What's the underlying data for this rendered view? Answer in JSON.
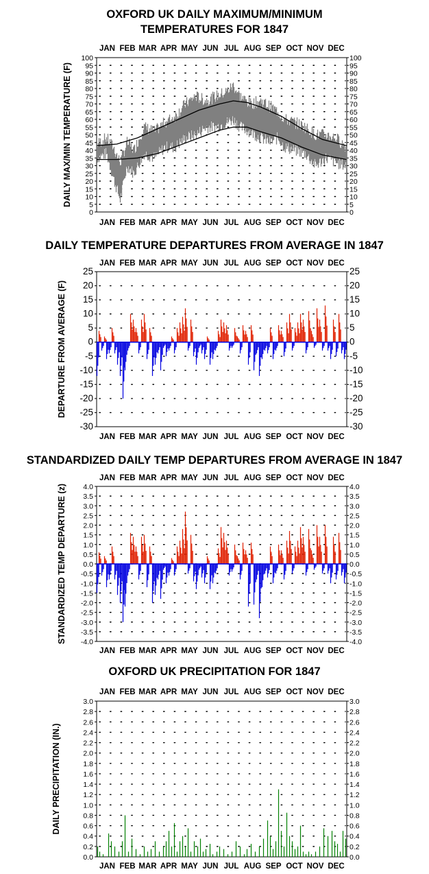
{
  "months": [
    "JAN",
    "FEB",
    "MAR",
    "APR",
    "MAY",
    "JUN",
    "JUL",
    "AUG",
    "SEP",
    "OCT",
    "NOV",
    "DEC"
  ],
  "colors": {
    "observed": "#808080",
    "normal": "#000000",
    "warm": "#e02000",
    "cold": "#0000e0",
    "precip": "#008000",
    "grid": "#000000"
  },
  "chart_data": [
    {
      "type": "line",
      "title": [
        "OXFORD UK DAILY MAXIMUM/MINIMUM",
        "TEMPERATURES FOR 1847"
      ],
      "ylabel": "DAILY MAX/MIN TEMPERATURE (F)",
      "ylim": [
        0,
        100
      ],
      "yticks": [
        0,
        5,
        10,
        15,
        20,
        25,
        30,
        35,
        40,
        45,
        50,
        55,
        60,
        65,
        70,
        75,
        80,
        85,
        90,
        95,
        100
      ],
      "grid": true,
      "series": [
        {
          "key": "observed_range",
          "note_points": [
            [
              1,
              35,
              44
            ],
            [
              15,
              38,
              48
            ],
            [
              25,
              22,
              42
            ],
            [
              35,
              8,
              32
            ],
            [
              45,
              30,
              45
            ],
            [
              55,
              25,
              40
            ],
            [
              70,
              38,
              55
            ],
            [
              85,
              35,
              52
            ],
            [
              100,
              42,
              58
            ],
            [
              115,
              42,
              62
            ],
            [
              130,
              48,
              70
            ],
            [
              145,
              50,
              75
            ],
            [
              160,
              55,
              72
            ],
            [
              175,
              55,
              75
            ],
            [
              190,
              58,
              78
            ],
            [
              200,
              60,
              82
            ],
            [
              210,
              55,
              75
            ],
            [
              225,
              52,
              70
            ],
            [
              240,
              48,
              72
            ],
            [
              255,
              45,
              68
            ],
            [
              265,
              48,
              65
            ],
            [
              275,
              42,
              60
            ],
            [
              290,
              40,
              58
            ],
            [
              305,
              38,
              55
            ],
            [
              320,
              30,
              50
            ],
            [
              335,
              35,
              50
            ],
            [
              350,
              32,
              48
            ],
            [
              365,
              30,
              42
            ]
          ]
        },
        {
          "key": "normal_max",
          "points": [
            [
              1,
              43
            ],
            [
              30,
              44
            ],
            [
              60,
              48
            ],
            [
              90,
              54
            ],
            [
              120,
              60
            ],
            [
              150,
              66
            ],
            [
              180,
              70
            ],
            [
              200,
              72
            ],
            [
              220,
              71
            ],
            [
              240,
              68
            ],
            [
              270,
              62
            ],
            [
              300,
              54
            ],
            [
              330,
              47
            ],
            [
              365,
              43
            ]
          ]
        },
        {
          "key": "normal_min",
          "points": [
            [
              1,
              34
            ],
            [
              30,
              34
            ],
            [
              60,
              35
            ],
            [
              90,
              38
            ],
            [
              120,
              43
            ],
            [
              150,
              48
            ],
            [
              180,
              53
            ],
            [
              200,
              55
            ],
            [
              220,
              55
            ],
            [
              240,
              52
            ],
            [
              270,
              48
            ],
            [
              300,
              42
            ],
            [
              330,
              37
            ],
            [
              365,
              34
            ]
          ]
        }
      ]
    },
    {
      "type": "bar",
      "title": "DAILY TEMPERATURE DEPARTURES FROM AVERAGE IN 1847",
      "ylabel": "DEPARTURE FROM AVERAGE (F)",
      "ylim": [
        -30,
        25
      ],
      "yticks": [
        25,
        20,
        15,
        10,
        5,
        0,
        -5,
        -10,
        -15,
        -20,
        -25,
        -30
      ],
      "grid": true,
      "x": [
        1,
        4,
        8,
        12,
        15,
        19,
        23,
        27,
        31,
        35,
        39,
        42,
        46,
        50,
        54,
        58,
        62,
        66,
        70,
        74,
        78,
        82,
        86,
        90,
        94,
        98,
        102,
        106,
        110,
        114,
        118,
        122,
        126,
        130,
        134,
        138,
        142,
        146,
        150,
        154,
        158,
        162,
        166,
        170,
        174,
        178,
        182,
        186,
        190,
        194,
        198,
        202,
        206,
        210,
        214,
        218,
        222,
        226,
        230,
        234,
        238,
        242,
        246,
        250,
        254,
        258,
        262,
        266,
        270,
        274,
        278,
        282,
        286,
        290,
        294,
        298,
        302,
        306,
        310,
        314,
        318,
        322,
        326,
        330,
        334,
        338,
        342,
        346,
        350,
        354,
        358,
        362
      ],
      "values": [
        -12,
        4,
        -3,
        2,
        -6,
        -4,
        5,
        -4,
        -8,
        -12,
        -20,
        -10,
        -3,
        10,
        8,
        5,
        -4,
        8,
        10,
        -6,
        5,
        -12,
        -8,
        -4,
        -10,
        -2,
        -5,
        -3,
        2,
        -4,
        5,
        7,
        9,
        12,
        -3,
        8,
        -5,
        -8,
        -2,
        -4,
        -6,
        2,
        -8,
        -6,
        -3,
        4,
        8,
        7,
        6,
        -3,
        -2,
        5,
        2,
        -4,
        6,
        4,
        -8,
        6,
        -10,
        -4,
        -12,
        -6,
        -3,
        -4,
        5,
        -6,
        -3,
        6,
        4,
        -5,
        7,
        10,
        -3,
        5,
        7,
        10,
        8,
        -4,
        11,
        4,
        -2,
        12,
        8,
        -3,
        13,
        -3,
        -6,
        8,
        -5,
        10,
        -4,
        -6
      ]
    },
    {
      "type": "bar",
      "title": "STANDARDIZED DAILY TEMP DEPARTURES FROM AVERAGE IN 1847",
      "ylabel": "STANDARDIZED TEMP DEPARTURE (z)",
      "ylim": [
        -4,
        4
      ],
      "yticks": [
        "4.0",
        "3.5",
        "3.0",
        "2.5",
        "2.0",
        "1.5",
        "1.0",
        "0.5",
        "0.0",
        "-0.5",
        "-1.0",
        "-1.5",
        "-2.0",
        "-2.5",
        "-3.0",
        "-3.5",
        "-4.0"
      ],
      "grid": true,
      "x": [
        1,
        4,
        8,
        12,
        15,
        19,
        23,
        27,
        31,
        35,
        39,
        42,
        46,
        50,
        54,
        58,
        62,
        66,
        70,
        74,
        78,
        82,
        86,
        90,
        94,
        98,
        102,
        106,
        110,
        114,
        118,
        122,
        126,
        130,
        134,
        138,
        142,
        146,
        150,
        154,
        158,
        162,
        166,
        170,
        174,
        178,
        182,
        186,
        190,
        194,
        198,
        202,
        206,
        210,
        214,
        218,
        222,
        226,
        230,
        234,
        238,
        242,
        246,
        250,
        254,
        258,
        262,
        266,
        270,
        274,
        278,
        282,
        286,
        290,
        294,
        298,
        302,
        306,
        310,
        314,
        318,
        322,
        326,
        330,
        334,
        338,
        342,
        346,
        350,
        354,
        358,
        362
      ],
      "values": [
        -1.5,
        0.6,
        -0.6,
        0.4,
        -1.2,
        -0.8,
        0.9,
        -0.8,
        -1.6,
        -2.0,
        -3.0,
        -2.2,
        -0.6,
        1.6,
        1.4,
        0.9,
        -0.8,
        1.4,
        1.5,
        -1.2,
        0.9,
        -2.0,
        -1.6,
        -0.8,
        -1.8,
        -0.3,
        -1.0,
        -0.6,
        0.3,
        -0.6,
        0.9,
        1.2,
        1.8,
        2.7,
        -0.5,
        1.5,
        -0.9,
        -1.3,
        -0.3,
        -0.7,
        -1.0,
        0.4,
        -1.3,
        -1.0,
        -0.5,
        0.8,
        1.9,
        1.6,
        1.2,
        -0.6,
        -0.4,
        1.0,
        0.4,
        -0.8,
        1.1,
        0.7,
        -2.2,
        1.1,
        -2.1,
        -0.8,
        -2.8,
        -1.2,
        -0.5,
        -0.7,
        0.9,
        -1.0,
        -0.5,
        1.0,
        0.7,
        -0.8,
        1.2,
        1.7,
        -0.5,
        0.9,
        1.2,
        1.9,
        1.4,
        -0.6,
        1.8,
        0.7,
        -0.3,
        2.0,
        1.4,
        -0.5,
        2.0,
        -0.5,
        -1.0,
        1.4,
        -0.8,
        1.6,
        -0.6,
        -1.0
      ]
    },
    {
      "type": "bar",
      "title": "OXFORD UK PRECIPITATION FOR 1847",
      "ylabel": "DAILY PRECIPITATION (IN.)",
      "ylim": [
        0,
        3
      ],
      "yticks": [
        "3.0",
        "2.8",
        "2.6",
        "2.4",
        "2.2",
        "2.0",
        "1.8",
        "1.6",
        "1.4",
        "1.2",
        "1.0",
        "0.8",
        "0.6",
        "0.4",
        "0.2",
        "0.0"
      ],
      "grid": true,
      "x": [
        2,
        5,
        10,
        18,
        22,
        27,
        33,
        38,
        42,
        47,
        52,
        58,
        64,
        70,
        75,
        80,
        86,
        92,
        98,
        102,
        106,
        110,
        114,
        118,
        122,
        126,
        130,
        134,
        138,
        143,
        148,
        152,
        156,
        160,
        166,
        170,
        176,
        180,
        186,
        192,
        198,
        204,
        210,
        216,
        220,
        226,
        232,
        238,
        244,
        250,
        254,
        258,
        262,
        266,
        270,
        274,
        278,
        282,
        286,
        290,
        294,
        298,
        302,
        306,
        310,
        314,
        320,
        326,
        332,
        338,
        344,
        348,
        352,
        356,
        360,
        364
      ],
      "values": [
        0.2,
        0.1,
        0.05,
        0.45,
        0.3,
        0.2,
        0.1,
        0.3,
        0.8,
        0.1,
        0.35,
        0.15,
        0.05,
        0.2,
        0.1,
        0.15,
        0.3,
        0.1,
        0.2,
        0.3,
        0.5,
        0.2,
        0.65,
        0.1,
        0.3,
        0.4,
        0.2,
        0.55,
        0.1,
        0.3,
        0.2,
        0.35,
        0.1,
        0.15,
        0.25,
        0.05,
        0.1,
        0.2,
        0.15,
        0.05,
        0.1,
        0.3,
        0.2,
        0.05,
        0.15,
        0.25,
        0.1,
        0.2,
        0.35,
        0.7,
        0.4,
        0.15,
        0.3,
        1.3,
        0.5,
        0.2,
        0.85,
        0.4,
        0.3,
        0.15,
        0.2,
        0.6,
        0.1,
        0.05,
        0.1,
        0.05,
        0.1,
        0.2,
        0.55,
        0.4,
        0.5,
        0.3,
        0.25,
        0.1,
        0.5,
        0.35
      ]
    }
  ]
}
